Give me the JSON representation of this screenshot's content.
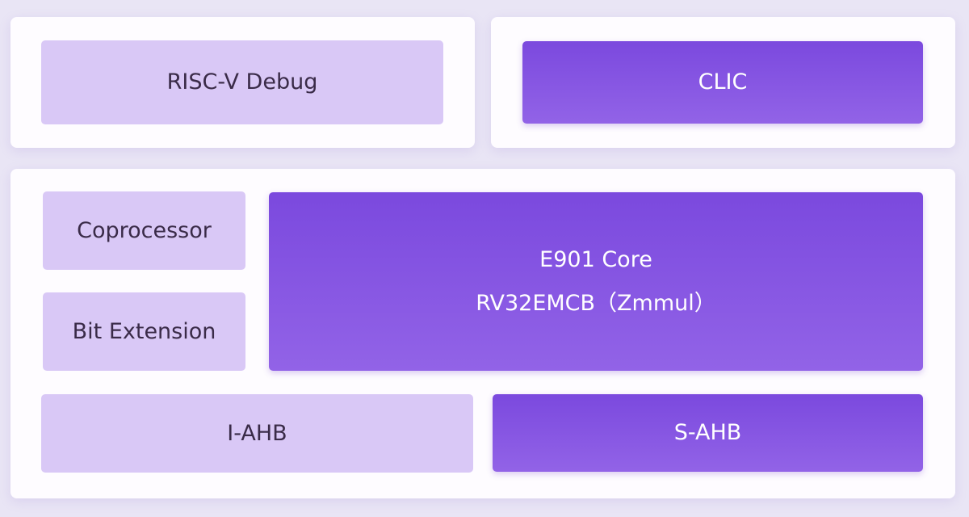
{
  "blocks": {
    "debug": "RISC-V Debug",
    "clic": "CLIC",
    "coprocessor": "Coprocessor",
    "bit_extension": "Bit Extension",
    "core_title": "E901 Core",
    "core_isa": "RV32EMCB（Zmmul）",
    "i_ahb": "I-AHB",
    "s_ahb": "S-AHB"
  },
  "colors": {
    "light_block": "#d9c8f6",
    "dark_block": "#7b49de",
    "background": "#e9e5f5",
    "panel": "#fefcff"
  }
}
